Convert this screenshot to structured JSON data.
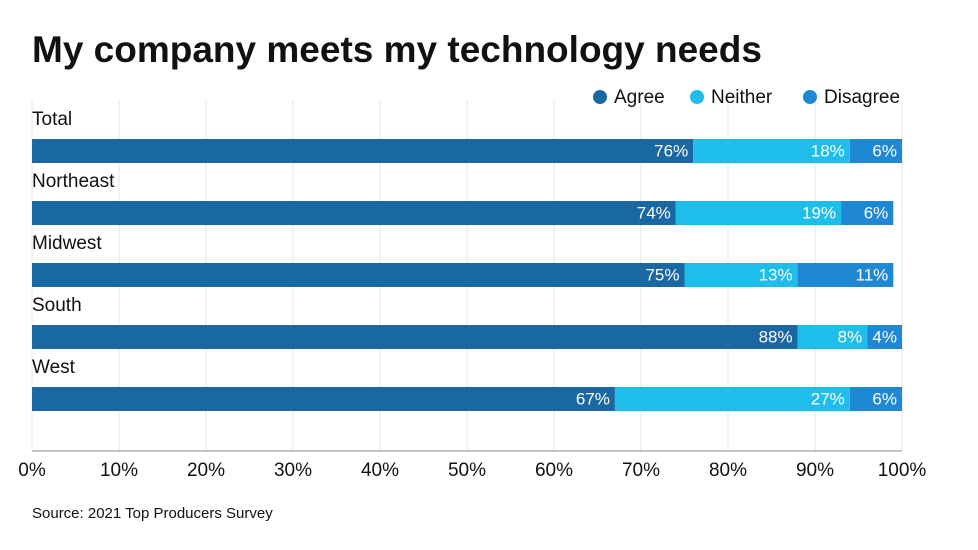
{
  "chart_data": {
    "type": "stacked-bar-horizontal",
    "title": "My company meets my technology needs",
    "source": "Source: 2021 Top Producers Survey",
    "categories": [
      "Total",
      "Northeast",
      "Midwest",
      "South",
      "West"
    ],
    "series": [
      {
        "name": "Agree",
        "color": "#1a68a2",
        "values": [
          76,
          74,
          75,
          88,
          67
        ],
        "value_labels": [
          "76%",
          "74%",
          "75%",
          "88%",
          "67%"
        ]
      },
      {
        "name": "Neither",
        "color": "#1fbeea",
        "values": [
          18,
          19,
          13,
          8,
          27
        ],
        "value_labels": [
          "18%",
          "19%",
          "13%",
          "8%",
          "27%"
        ]
      },
      {
        "name": "Disagree",
        "color": "#1f88d4",
        "values": [
          6,
          6,
          11,
          4,
          6
        ],
        "value_labels": [
          "6%",
          "6%",
          "11%",
          "4%",
          "6%"
        ]
      }
    ],
    "xlim": [
      0,
      100
    ],
    "xticks": [
      {
        "value": 0,
        "label": "0%"
      },
      {
        "value": 10,
        "label": "10%"
      },
      {
        "value": 20,
        "label": "20%"
      },
      {
        "value": 30,
        "label": "30%"
      },
      {
        "value": 40,
        "label": "40%"
      },
      {
        "value": 50,
        "label": "50%"
      },
      {
        "value": 60,
        "label": "60%"
      },
      {
        "value": 70,
        "label": "70%"
      },
      {
        "value": 80,
        "label": "80%"
      },
      {
        "value": 90,
        "label": "90%"
      },
      {
        "value": 100,
        "label": "100%"
      }
    ],
    "grid": true,
    "legend": "top-right"
  }
}
